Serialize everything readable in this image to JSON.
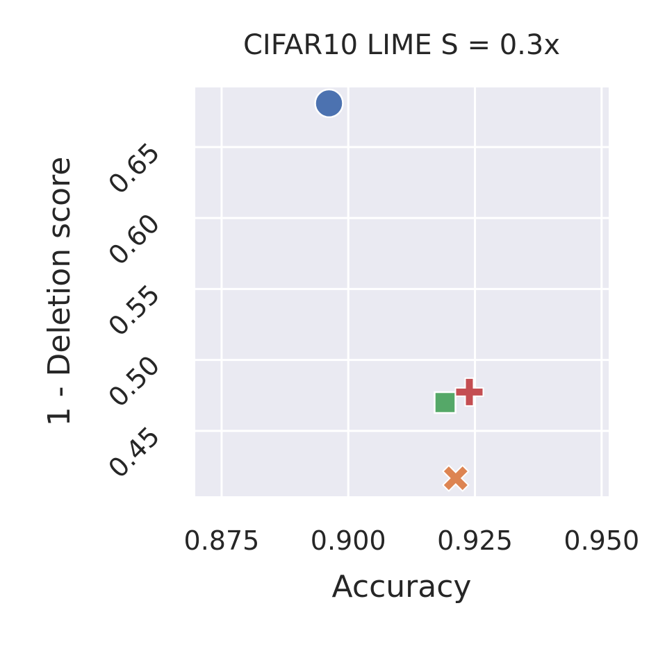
{
  "chart_data": {
    "type": "scatter",
    "title": "CIFAR10 LIME S = 0.3x",
    "x_label": "Accuracy",
    "y_label": "1 - Deletion score",
    "xlim": [
      0.8698,
      0.9514
    ],
    "ylim": [
      0.404,
      0.692
    ],
    "xticks": [
      0.875,
      {
        "value": 0.9,
        "label": "0.900"
      },
      0.925,
      {
        "value": 0.95,
        "label": "0.950"
      }
    ],
    "yticks": [
      {
        "value": 0.45,
        "label": "0.45"
      },
      {
        "value": 0.5,
        "label": "0.50"
      },
      {
        "value": 0.55,
        "label": "0.55"
      },
      {
        "value": 0.6,
        "label": "0.60"
      },
      {
        "value": 0.65,
        "label": "0.65"
      }
    ],
    "grid": true,
    "background": "#eaeaf2",
    "series": [
      {
        "color": "#4c72b0",
        "marker": "circle",
        "x": [
          0.8962
        ],
        "y": [
          0.6808
        ]
      },
      {
        "color": "#dd8452",
        "marker": "x",
        "x": [
          0.9212
        ],
        "y": [
          0.4167
        ]
      },
      {
        "color": "#55a868",
        "marker": "square",
        "x": [
          0.9191
        ],
        "y": [
          0.47
        ]
      },
      {
        "color": "#c44e52",
        "marker": "plus",
        "x": [
          0.9239
        ],
        "y": [
          0.4774
        ]
      }
    ]
  }
}
